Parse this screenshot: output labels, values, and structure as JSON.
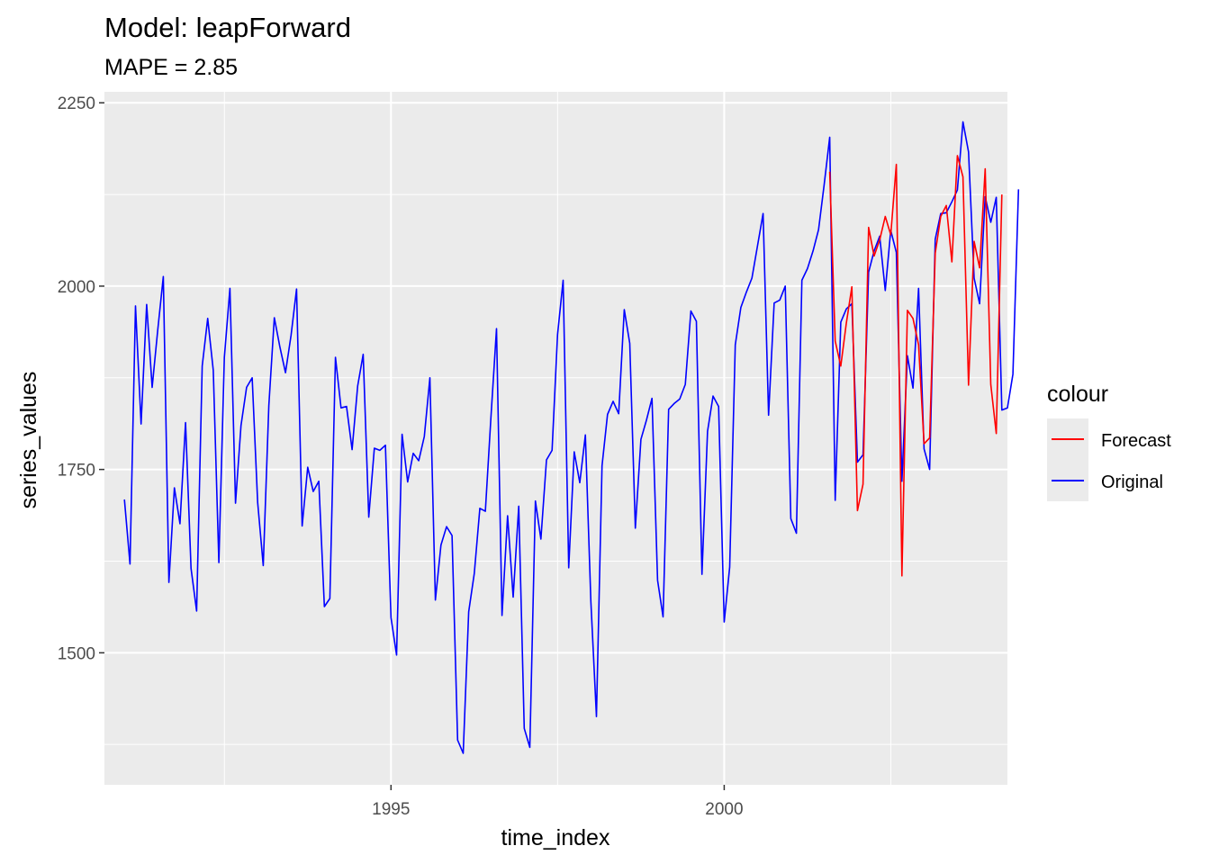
{
  "title": "Model:  leapForward",
  "subtitle": "MAPE = 2.85",
  "chart_data": {
    "type": "line",
    "title": "Model:  leapForward",
    "subtitle": "MAPE = 2.85",
    "xlabel": "time_index",
    "ylabel": "series_values",
    "xlim": [
      1990.7,
      2004.25
    ],
    "ylim": [
      1320,
      2265
    ],
    "x_ticks": [
      1995,
      2000
    ],
    "y_ticks": [
      1500,
      1750,
      2000,
      2250
    ],
    "grid": true,
    "legend": {
      "title": "colour",
      "position": "right",
      "entries": [
        "Forecast",
        "Original"
      ]
    },
    "colors": {
      "Forecast": "#ff0000",
      "Original": "#0000ff",
      "panel": "#ebebeb",
      "grid": "#ffffff"
    },
    "x_start": 1991.0,
    "x_step": 0.08333,
    "series": [
      {
        "name": "Original",
        "color": "#0000ff",
        "x_start_index": 0,
        "values": [
          1709,
          1621,
          1973,
          1812,
          1975,
          1862,
          1940,
          2013,
          1596,
          1725,
          1676,
          1814,
          1615,
          1557,
          1891,
          1956,
          1885,
          1623,
          1903,
          1997,
          1704,
          1810,
          1862,
          1875,
          1705,
          1619,
          1837,
          1957,
          1917,
          1882,
          1933,
          1996,
          1673,
          1753,
          1720,
          1734,
          1563,
          1574,
          1903,
          1834,
          1836,
          1777,
          1864,
          1907,
          1685,
          1779,
          1776,
          1783,
          1548,
          1497,
          1798,
          1733,
          1772,
          1762,
          1795,
          1875,
          1572,
          1647,
          1672,
          1660,
          1381,
          1363,
          1556,
          1608,
          1697,
          1693,
          1821,
          1942,
          1551,
          1687,
          1576,
          1700,
          1397,
          1371,
          1707,
          1655,
          1763,
          1776,
          1934,
          2008,
          1616,
          1774,
          1732,
          1797,
          1570,
          1413,
          1755,
          1825,
          1843,
          1826,
          1968,
          1922,
          1670,
          1791,
          1817,
          1847,
          1599,
          1549,
          1832,
          1840,
          1846,
          1866,
          1966,
          1952,
          1607,
          1802,
          1850,
          1836,
          1542,
          1617,
          1920,
          1971,
          1992,
          2011,
          2055,
          2099,
          1824,
          1977,
          1981,
          2000,
          1683,
          1663,
          2008,
          2024,
          2048,
          2077,
          2138,
          2203,
          1708,
          1951,
          1969,
          1976,
          1760,
          1770,
          2019,
          2048,
          2068,
          1994,
          2076,
          2046,
          1734,
          1905,
          1861,
          1997,
          1778,
          1750,
          2064,
          2099,
          2100,
          2115,
          2131,
          2224,
          2183,
          2011,
          1976,
          2122,
          2087,
          2121,
          1831,
          1834,
          1880,
          2132
        ]
      },
      {
        "name": "Forecast",
        "color": "#ff0000",
        "x_start_index": 127,
        "values": [
          2156,
          1925,
          1891,
          1950,
          1999,
          1694,
          1730,
          2080,
          2041,
          2063,
          2095,
          2070,
          2166,
          1605,
          1967,
          1956,
          1920,
          1785,
          1793,
          2045,
          2095,
          2110,
          2033,
          2178,
          2149,
          1865,
          2061,
          2025,
          2160,
          1866,
          1799,
          2125
        ]
      }
    ]
  }
}
